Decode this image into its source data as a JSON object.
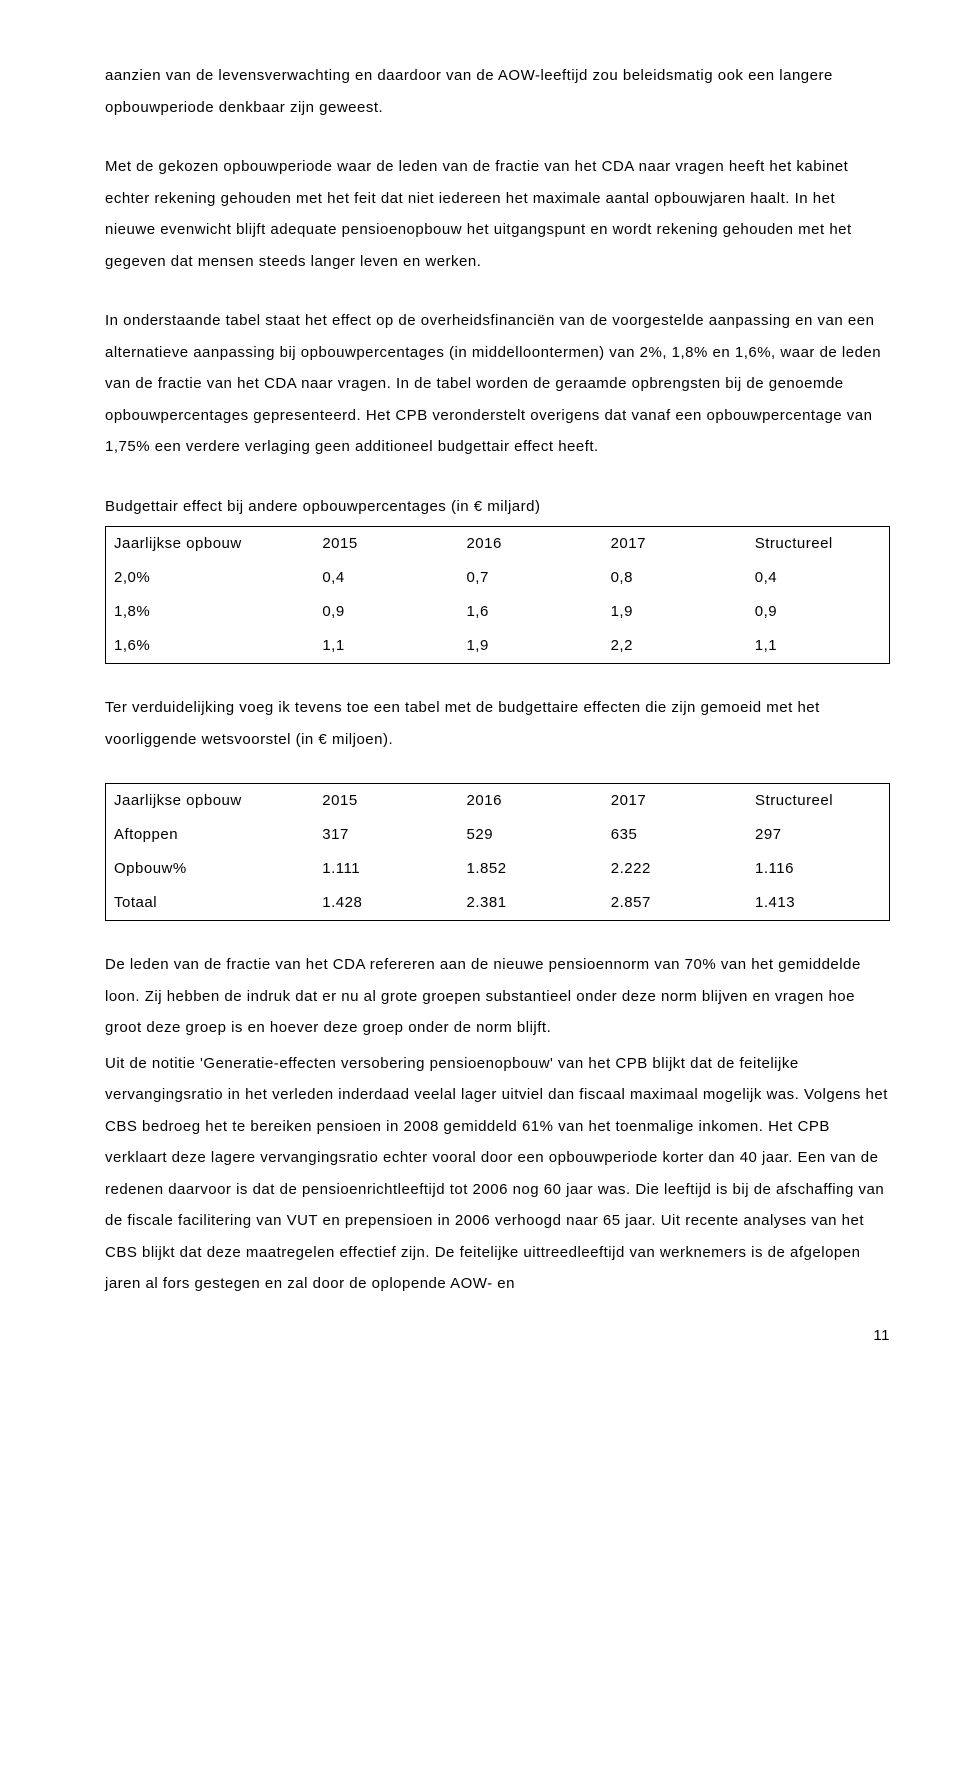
{
  "para1": "aanzien van de levensverwachting en daardoor van de AOW-leeftijd zou beleidsmatig ook een langere opbouwperiode denkbaar zijn geweest.",
  "para2": "Met de gekozen opbouwperiode waar de leden van de fractie van het CDA naar vragen heeft het kabinet echter rekening gehouden met het feit dat niet iedereen het maximale aantal opbouwjaren haalt. In het nieuwe evenwicht blijft adequate pensioenopbouw het uitgangspunt en wordt rekening gehouden met het gegeven dat mensen steeds langer leven en werken.",
  "para3": "In onderstaande tabel staat het effect op de overheidsfinanciën van de voorgestelde aanpassing en van een alternatieve aanpassing bij opbouwpercentages (in middelloontermen) van 2%, 1,8% en 1,6%, waar de leden van de fractie van het CDA naar vragen. In de tabel worden de geraamde opbrengsten bij de genoemde opbouwpercentages gepresenteerd. Het CPB veronderstelt overigens dat vanaf een opbouwpercentage van 1,75% een verdere verlaging geen additioneel budgettair effect heeft.",
  "t1cap": "Budgettair effect bij andere opbouwpercentages (in € miljard)",
  "t1": {
    "h": [
      "Jaarlijkse opbouw",
      "2015",
      "2016",
      "2017",
      "Structureel"
    ],
    "r": [
      [
        "2,0%",
        "0,4",
        "0,7",
        "0,8",
        "0,4"
      ],
      [
        "1,8%",
        "0,9",
        "1,6",
        "1,9",
        "0,9"
      ],
      [
        "1,6%",
        "1,1",
        "1,9",
        "2,2",
        "1,1"
      ]
    ]
  },
  "para4": " Ter verduidelijking voeg ik tevens toe een tabel met de budgettaire effecten die zijn gemoeid met het voorliggende wetsvoorstel (in € miljoen).",
  "t2": {
    "h": [
      "Jaarlijkse opbouw",
      "2015",
      "2016",
      "2017",
      "Structureel"
    ],
    "r": [
      [
        "Aftoppen",
        "317",
        "529",
        "635",
        "297"
      ],
      [
        "Opbouw%",
        "1.111",
        "1.852",
        "2.222",
        "1.116"
      ],
      [
        "Totaal",
        "1.428",
        "2.381",
        "2.857",
        "1.413"
      ]
    ]
  },
  "para5": "De leden van de fractie van het CDA refereren aan de nieuwe pensioennorm van 70% van het gemiddelde loon. Zij hebben de indruk dat er nu al grote groepen substantieel onder deze norm blijven en vragen hoe groot deze groep is en hoever deze groep onder de norm blijft.",
  "para6": "Uit de notitie 'Generatie-effecten versobering pensioenopbouw' van het CPB blijkt dat de feitelijke vervangingsratio in het verleden inderdaad veelal lager uitviel dan fiscaal maximaal mogelijk was. Volgens het CBS bedroeg het te bereiken pensioen in 2008 gemiddeld 61% van het toenmalige inkomen. Het CPB verklaart deze lagere vervangingsratio echter vooral door een opbouwperiode korter dan 40 jaar. Een van de redenen daarvoor is dat de pensioenrichtleeftijd tot 2006 nog 60 jaar was. Die leeftijd is bij de afschaffing van de fiscale facilitering van VUT en prepensioen in 2006 verhoogd naar 65 jaar. Uit recente analyses van het CBS blijkt dat deze maatregelen effectief zijn. De feitelijke uittreedleeftijd van werknemers is de afgelopen jaren al fors gestegen en zal door de oplopende AOW- en",
  "pagenum": "11"
}
